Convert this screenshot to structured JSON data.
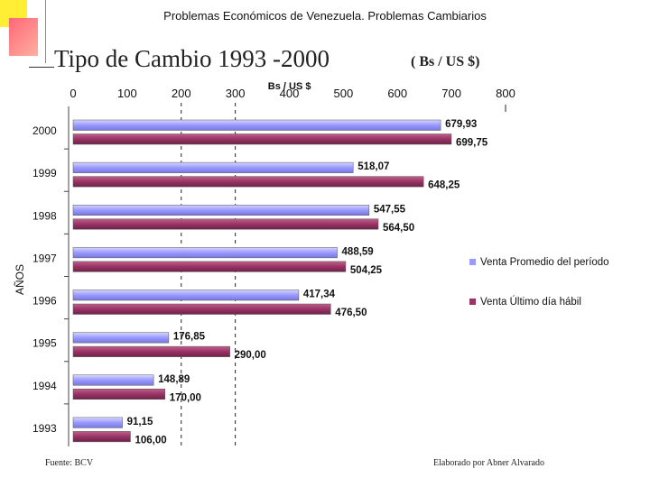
{
  "header": "Problemas Económicos de Venezuela.  Problemas Cambiarios",
  "title": "Tipo de Cambio 1993 -2000",
  "unit_note": "( Bs / US $)",
  "footer": {
    "source": "Fuente: BCV",
    "author": "Elaborado por  Abner Alvarado"
  },
  "colors": {
    "series1": "#9999ff",
    "series2": "#993366"
  },
  "chart_data": {
    "type": "bar",
    "orientation": "horizontal",
    "categories": [
      "2000",
      "1999",
      "1998",
      "1997",
      "1996",
      "1995",
      "1994",
      "1993"
    ],
    "series": [
      {
        "name": "Venta Promedio del período",
        "values": [
          679.93,
          518.07,
          547.55,
          488.59,
          417.34,
          176.85,
          148.89,
          91.15
        ],
        "labels": [
          "679,93",
          "518,07",
          "547,55",
          "488,59",
          "417,34",
          "176,85",
          "148,89",
          "91,15"
        ]
      },
      {
        "name": "Venta Último día hábil",
        "values": [
          699.75,
          648.25,
          564.5,
          504.25,
          476.5,
          290.0,
          170.0,
          106.0
        ],
        "labels": [
          "699,75",
          "648,25",
          "564,50",
          "504,25",
          "476,50",
          "290,00",
          "170,00",
          "106,00"
        ]
      }
    ],
    "xlabel": "Bs / US $",
    "ylabel": "AÑOS",
    "xlim": [
      0,
      800
    ],
    "xticks": [
      "0",
      "100",
      "200",
      "300",
      "400",
      "500",
      "600",
      "700",
      "800"
    ],
    "gridlines": "dashed at 200 and 300",
    "legend": "right"
  }
}
